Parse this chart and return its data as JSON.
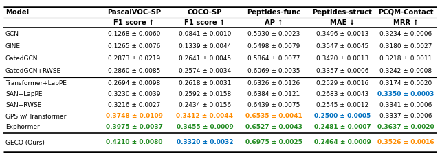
{
  "col_headers_top": [
    "PascalVOC-SP",
    "COCO-SP",
    "Peptides-func",
    "Peptides-struct",
    "PCQM-Contact"
  ],
  "col_headers_bot": [
    "F1 score ↑",
    "F1 score ↑",
    "AP ↑",
    "MAE ↓",
    "MRR ↑"
  ],
  "col_label": "Model",
  "rows": [
    {
      "model": "GCN",
      "values": [
        "0.1268 ± 0.0060",
        "0.0841 ± 0.0010",
        "0.5930 ± 0.0023",
        "0.3496 ± 0.0013",
        "0.3234 ± 0.0006"
      ],
      "colors": [
        "black",
        "black",
        "black",
        "black",
        "black"
      ],
      "bold": [
        false,
        false,
        false,
        false,
        false
      ],
      "group": 0
    },
    {
      "model": "GINE",
      "values": [
        "0.1265 ± 0.0076",
        "0.1339 ± 0.0044",
        "0.5498 ± 0.0079",
        "0.3547 ± 0.0045",
        "0.3180 ± 0.0027"
      ],
      "colors": [
        "black",
        "black",
        "black",
        "black",
        "black"
      ],
      "bold": [
        false,
        false,
        false,
        false,
        false
      ],
      "group": 0
    },
    {
      "model": "GatedGCN",
      "values": [
        "0.2873 ± 0.0219",
        "0.2641 ± 0.0045",
        "0.5864 ± 0.0077",
        "0.3420 ± 0.0013",
        "0.3218 ± 0.0011"
      ],
      "colors": [
        "black",
        "black",
        "black",
        "black",
        "black"
      ],
      "bold": [
        false,
        false,
        false,
        false,
        false
      ],
      "group": 0
    },
    {
      "model": "GatedGCN+RWSE",
      "values": [
        "0.2860 ± 0.0085",
        "0.2574 ± 0.0034",
        "0.6069 ± 0.0035",
        "0.3357 ± 0.0006",
        "0.3242 ± 0.0008"
      ],
      "colors": [
        "black",
        "black",
        "black",
        "black",
        "black"
      ],
      "bold": [
        false,
        false,
        false,
        false,
        false
      ],
      "group": 0
    },
    {
      "model": "Transformer+LapPE",
      "values": [
        "0.2694 ± 0.0098",
        "0.2618 ± 0.0031",
        "0.6326 ± 0.0126",
        "0.2529 ± 0.0016",
        "0.3174 ± 0.0020"
      ],
      "colors": [
        "black",
        "black",
        "black",
        "black",
        "black"
      ],
      "bold": [
        false,
        false,
        false,
        false,
        false
      ],
      "group": 1
    },
    {
      "model": "SAN+LapPE",
      "values": [
        "0.3230 ± 0.0039",
        "0.2592 ± 0.0158",
        "0.6384 ± 0.0121",
        "0.2683 ± 0.0043",
        "0.3350 ± 0.0003"
      ],
      "colors": [
        "black",
        "black",
        "black",
        "black",
        "#0070c0"
      ],
      "bold": [
        false,
        false,
        false,
        false,
        true
      ],
      "group": 1
    },
    {
      "model": "SAN+RWSE",
      "values": [
        "0.3216 ± 0.0027",
        "0.2434 ± 0.0156",
        "0.6439 ± 0.0075",
        "0.2545 ± 0.0012",
        "0.3341 ± 0.0006"
      ],
      "colors": [
        "black",
        "black",
        "black",
        "black",
        "black"
      ],
      "bold": [
        false,
        false,
        false,
        false,
        false
      ],
      "group": 1
    },
    {
      "model": "GPS w/ Transformer",
      "values": [
        "0.3748 ± 0.0109",
        "0.3412 ± 0.0044",
        "0.6535 ± 0.0041",
        "0.2500 ± 0.0005",
        "0.3337 ± 0.0006"
      ],
      "colors": [
        "#ff8c00",
        "#ff8c00",
        "#ff8c00",
        "#0070c0",
        "black"
      ],
      "bold": [
        true,
        true,
        true,
        true,
        false
      ],
      "group": 1
    },
    {
      "model": "Exphormer",
      "values": [
        "0.3975 ± 0.0037",
        "0.3455 ± 0.0009",
        "0.6527 ± 0.0043",
        "0.2481 ± 0.0007",
        "0.3637 ± 0.0020"
      ],
      "colors": [
        "#228b22",
        "#228b22",
        "#228b22",
        "#228b22",
        "#228b22"
      ],
      "bold": [
        true,
        true,
        true,
        true,
        true
      ],
      "group": 1
    },
    {
      "model": "GECO (Ours)",
      "values": [
        "0.4210 ± 0.0080",
        "0.3320 ± 0.0032",
        "0.6975 ± 0.0025",
        "0.2464 ± 0.0009",
        "0.3526 ± 0.0016"
      ],
      "colors": [
        "#228b22",
        "#0070c0",
        "#228b22",
        "#228b22",
        "#ff8c00"
      ],
      "bold": [
        true,
        true,
        true,
        true,
        true
      ],
      "group": 2
    }
  ],
  "bg_color": "#ffffff",
  "fig_width": 6.4,
  "fig_height": 2.35,
  "dpi": 100
}
